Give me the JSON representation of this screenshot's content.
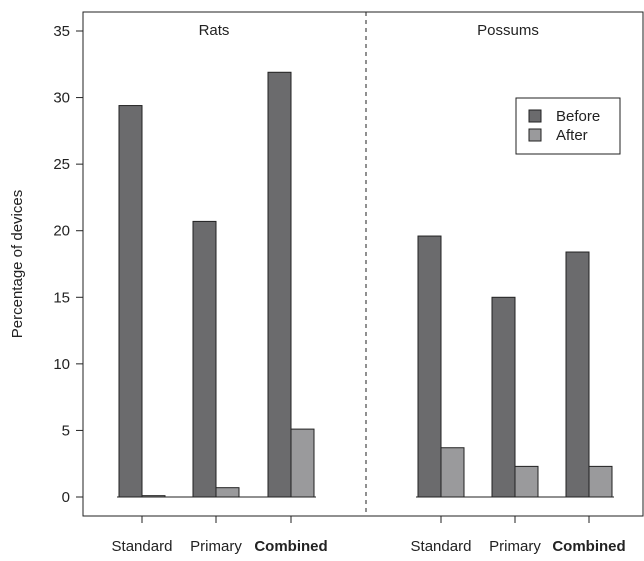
{
  "chart_data": {
    "type": "bar",
    "ylabel": "Percentage of devices",
    "ylim": [
      0,
      35
    ],
    "yticks": [
      0,
      5,
      10,
      15,
      20,
      25,
      30,
      35
    ],
    "grid": false,
    "legend_position": "top-right",
    "colors": {
      "Before": "#6b6b6d",
      "After": "#9a9a9c",
      "outline": "#222222"
    },
    "panels": [
      {
        "label": "Rats",
        "categories": [
          "Standard",
          "Primary",
          "Combined"
        ],
        "series": [
          {
            "name": "Before",
            "values": [
              29.4,
              20.7,
              31.9
            ]
          },
          {
            "name": "After",
            "values": [
              0.1,
              0.7,
              5.1
            ]
          }
        ]
      },
      {
        "label": "Possums",
        "categories": [
          "Standard",
          "Primary",
          "Combined"
        ],
        "series": [
          {
            "name": "Before",
            "values": [
              19.6,
              15.0,
              18.4
            ]
          },
          {
            "name": "After",
            "values": [
              3.7,
              2.3,
              2.3
            ]
          }
        ]
      }
    ]
  }
}
